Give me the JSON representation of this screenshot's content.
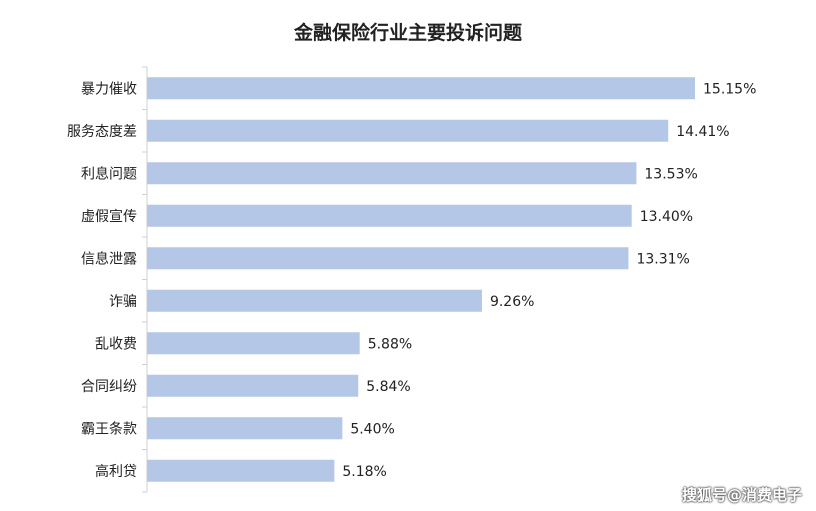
{
  "chart_data": {
    "type": "bar",
    "orientation": "horizontal",
    "title": "金融保险行业主要投诉问题",
    "categories": [
      "暴力催收",
      "服务态度差",
      "利息问题",
      "虚假宣传",
      "信息泄露",
      "诈骗",
      "乱收费",
      "合同纠纷",
      "霸王条款",
      "高利贷"
    ],
    "values": [
      15.15,
      14.41,
      13.53,
      13.4,
      13.31,
      9.26,
      5.88,
      5.84,
      5.4,
      5.18
    ],
    "value_labels": [
      "15.15%",
      "14.41%",
      "13.53%",
      "13.40%",
      "13.31%",
      "9.26%",
      "5.88%",
      "5.84%",
      "5.40%",
      "5.18%"
    ],
    "unit": "%",
    "xlim": [
      0,
      15.15
    ],
    "grid": false,
    "bar_color": "#b4c7e7"
  },
  "watermark": "搜狐号@消费电子"
}
